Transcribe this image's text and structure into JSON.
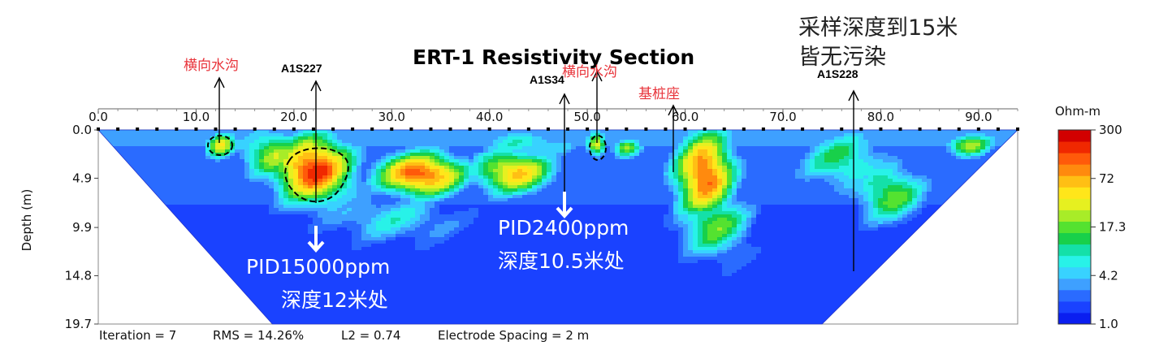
{
  "chart_data": {
    "type": "heatmap",
    "title": "ERT-1 Resistivity Section",
    "ylabel": "Depth (m)",
    "xlim": [
      0,
      94
    ],
    "ylim": [
      0,
      19.7
    ],
    "x_ticks": [
      "0.0",
      "10.0",
      "20.0",
      "30.0",
      "40.0",
      "50.0",
      "60.0",
      "70.0",
      "80.0",
      "90.0"
    ],
    "y_ticks": [
      "0.0",
      "4.9",
      "9.9",
      "14.8",
      "19.7"
    ],
    "colorbar": {
      "label": "Ohm-m",
      "ticks": [
        "300",
        "72",
        "17.3",
        "4.2",
        "1.0"
      ],
      "colors": [
        "#0a1ef0",
        "#1a42ff",
        "#2a6bff",
        "#3ea0ff",
        "#38d2ff",
        "#28f2e8",
        "#14e0a8",
        "#18d04a",
        "#54e230",
        "#a8ec28",
        "#e6f020",
        "#ffe61a",
        "#ffbf14",
        "#ff8a0e",
        "#ff5a0a",
        "#f02800",
        "#d20000"
      ]
    },
    "anomalies": [
      {
        "x": 12.5,
        "z": 1.5,
        "level": 0.62,
        "rx": 1.6,
        "rz": 1.3
      },
      {
        "x": 22.0,
        "z": 4.0,
        "level": 0.92,
        "rx": 4.0,
        "rz": 3.4
      },
      {
        "x": 18.0,
        "z": 2.5,
        "level": 0.55,
        "rx": 3.5,
        "rz": 2.5
      },
      {
        "x": 33.0,
        "z": 4.5,
        "level": 0.88,
        "rx": 4.5,
        "rz": 2.2
      },
      {
        "x": 42.5,
        "z": 4.3,
        "level": 0.72,
        "rx": 4.0,
        "rz": 2.2
      },
      {
        "x": 51.0,
        "z": 1.5,
        "level": 0.65,
        "rx": 1.0,
        "rz": 1.2
      },
      {
        "x": 54.0,
        "z": 1.8,
        "level": 0.5,
        "rx": 1.5,
        "rz": 1.0
      },
      {
        "x": 62.0,
        "z": 4.5,
        "level": 0.85,
        "rx": 3.0,
        "rz": 4.5
      },
      {
        "x": 63.0,
        "z": 9.5,
        "level": 0.5,
        "rx": 3.5,
        "rz": 3.5
      },
      {
        "x": 76.0,
        "z": 3.0,
        "level": 0.42,
        "rx": 4.5,
        "rz": 3.0
      },
      {
        "x": 81.0,
        "z": 6.5,
        "level": 0.5,
        "rx": 3.5,
        "rz": 3.0
      },
      {
        "x": 89.0,
        "z": 1.5,
        "level": 0.55,
        "rx": 2.5,
        "rz": 1.2
      },
      {
        "x": 30.0,
        "z": 9.0,
        "level": 0.3,
        "rx": 7.0,
        "rz": 2.5
      },
      {
        "x": 44.0,
        "z": 1.5,
        "level": 0.35,
        "rx": 5.0,
        "rz": 1.5
      }
    ],
    "stats": {
      "iteration": "Iteration = 7",
      "rms": "RMS = 14.26%",
      "l2": "L2 = 0.74",
      "spacing": "Electrode Spacing = 2 m"
    }
  },
  "annotations": {
    "ditch1": "横向水沟",
    "ditch2": "横向水沟",
    "pile": "基桩座",
    "bh1": "A1S227",
    "bh2": "A1S34",
    "bh3": "A1S228",
    "pid1_line1": "PID15000ppm",
    "pid1_line2": "深度12米处",
    "pid2_line1": "PID2400ppm",
    "pid2_line2": "深度10.5米处",
    "sample_line1": "采样深度到15米",
    "sample_line2": "皆无污染"
  }
}
